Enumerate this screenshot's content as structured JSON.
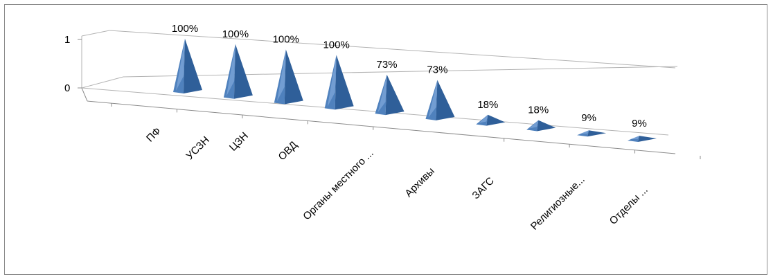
{
  "chart_data": {
    "type": "bar",
    "style": "3d-pyramid",
    "categories": [
      "ПФ",
      "УСЗН",
      "ЦЗН",
      "ОВД",
      "Органы местного ...",
      "",
      "Архивы",
      "ЗАГС",
      "Религиозные...",
      "Отделы ..."
    ],
    "values": [
      1.0,
      1.0,
      1.0,
      1.0,
      0.73,
      0.73,
      0.18,
      0.18,
      0.09,
      0.09
    ],
    "data_labels": [
      "100%",
      "100%",
      "100%",
      "100%",
      "73%",
      "73%",
      "18%",
      "18%",
      "9%",
      "9%"
    ],
    "y_ticks": [
      "0",
      "1"
    ],
    "ylim": [
      0,
      1
    ],
    "grid": true,
    "legend": "none",
    "colors": {
      "bar": "#4f81bd",
      "bar_light": "#8fb4e3",
      "bar_dark": "#2f5f99",
      "grid": "#b3b3b3",
      "axis": "#8c8c8c",
      "frame": "#8c8c8c"
    }
  }
}
